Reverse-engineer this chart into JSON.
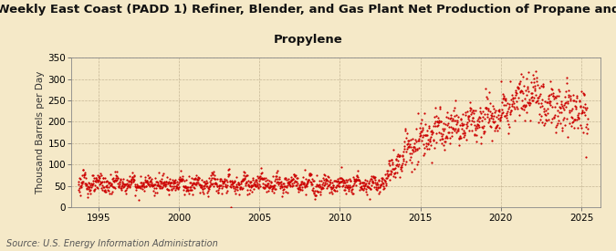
{
  "title_line1": "Weekly East Coast (PADD 1) Refiner, Blender, and Gas Plant Net Production of Propane and",
  "title_line2": "Propylene",
  "ylabel": "Thousand Barrels per Day",
  "source": "Source: U.S. Energy Information Administration",
  "background_color": "#f5e9c8",
  "dot_color": "#cc0000",
  "ylim": [
    0,
    350
  ],
  "yticks": [
    0,
    50,
    100,
    150,
    200,
    250,
    300,
    350
  ],
  "xlim_start": 1993.3,
  "xlim_end": 2026.2,
  "xticks": [
    1995,
    2000,
    2005,
    2010,
    2015,
    2020,
    2025
  ],
  "title_fontsize": 9.5,
  "ylabel_fontsize": 7.5,
  "tick_fontsize": 7.5,
  "source_fontsize": 7.0
}
